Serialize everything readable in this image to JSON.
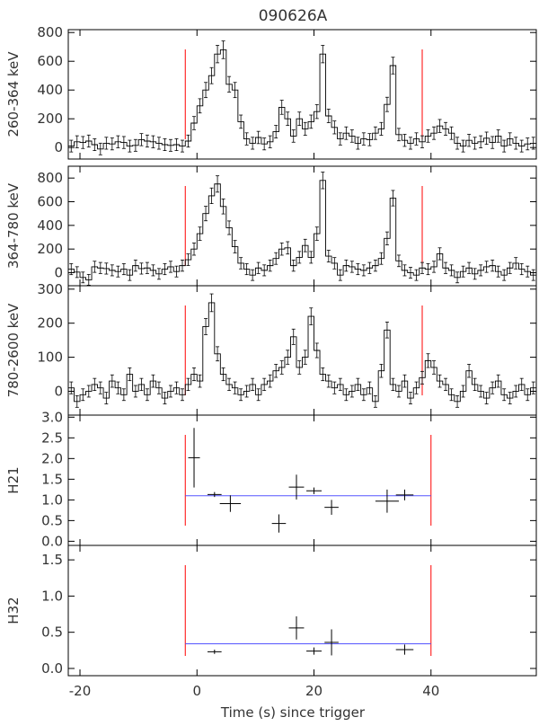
{
  "chart_data": {
    "type": "line",
    "title": "090626A",
    "xlabel": "Time (s) since trigger",
    "xlim": [
      -22,
      58
    ],
    "xticks": [
      -20,
      0,
      20,
      40
    ],
    "colors": {
      "data": "#000000",
      "marker": "#ff0000",
      "fit": "#5555ff",
      "frame": "#000000"
    },
    "panels": [
      {
        "ylabel": "260-364 keV",
        "ylim": [
          -80,
          820
        ],
        "yticks": [
          0,
          200,
          400,
          600,
          800
        ],
        "lightcurve": [
          [
            -22,
            10
          ],
          [
            -21,
            40
          ],
          [
            -20,
            35
          ],
          [
            -19,
            45
          ],
          [
            -18,
            20
          ],
          [
            -17,
            -10
          ],
          [
            -16,
            30
          ],
          [
            -15,
            25
          ],
          [
            -14,
            40
          ],
          [
            -13,
            35
          ],
          [
            -12,
            10
          ],
          [
            -11,
            15
          ],
          [
            -10,
            55
          ],
          [
            -9,
            45
          ],
          [
            -8,
            40
          ],
          [
            -7,
            30
          ],
          [
            -6,
            20
          ],
          [
            -5,
            15
          ],
          [
            -4,
            20
          ],
          [
            -3,
            10
          ],
          [
            -2,
            45
          ],
          [
            -1,
            170
          ],
          [
            0,
            290
          ],
          [
            1,
            400
          ],
          [
            2,
            500
          ],
          [
            3,
            650
          ],
          [
            4,
            680
          ],
          [
            5,
            440
          ],
          [
            6,
            400
          ],
          [
            7,
            180
          ],
          [
            8,
            60
          ],
          [
            9,
            30
          ],
          [
            10,
            70
          ],
          [
            11,
            25
          ],
          [
            12,
            40
          ],
          [
            13,
            110
          ],
          [
            14,
            280
          ],
          [
            15,
            200
          ],
          [
            16,
            80
          ],
          [
            17,
            200
          ],
          [
            18,
            130
          ],
          [
            19,
            180
          ],
          [
            20,
            250
          ],
          [
            21,
            650
          ],
          [
            22,
            220
          ],
          [
            23,
            140
          ],
          [
            24,
            60
          ],
          [
            25,
            100
          ],
          [
            26,
            80
          ],
          [
            27,
            30
          ],
          [
            28,
            60
          ],
          [
            29,
            55
          ],
          [
            30,
            100
          ],
          [
            31,
            130
          ],
          [
            32,
            300
          ],
          [
            33,
            570
          ],
          [
            34,
            90
          ],
          [
            35,
            50
          ],
          [
            36,
            30
          ],
          [
            37,
            60
          ],
          [
            38,
            40
          ],
          [
            39,
            80
          ],
          [
            40,
            100
          ],
          [
            41,
            150
          ],
          [
            42,
            130
          ],
          [
            43,
            100
          ],
          [
            44,
            30
          ],
          [
            45,
            10
          ],
          [
            46,
            50
          ],
          [
            47,
            30
          ],
          [
            48,
            40
          ],
          [
            49,
            65
          ],
          [
            50,
            35
          ],
          [
            51,
            80
          ],
          [
            52,
            10
          ],
          [
            53,
            60
          ],
          [
            54,
            30
          ],
          [
            55,
            10
          ],
          [
            56,
            25
          ],
          [
            57,
            30
          ]
        ],
        "markers": [
          -2,
          38.5
        ]
      },
      {
        "ylabel": "364-780 keV",
        "ylim": [
          -110,
          900
        ],
        "yticks": [
          0,
          200,
          400,
          600,
          800
        ],
        "lightcurve": [
          [
            -22,
            30
          ],
          [
            -21,
            5
          ],
          [
            -20,
            -40
          ],
          [
            -19,
            -60
          ],
          [
            -18,
            50
          ],
          [
            -17,
            40
          ],
          [
            -16,
            35
          ],
          [
            -15,
            20
          ],
          [
            -14,
            10
          ],
          [
            -13,
            30
          ],
          [
            -12,
            -20
          ],
          [
            -11,
            60
          ],
          [
            -10,
            35
          ],
          [
            -9,
            40
          ],
          [
            -8,
            20
          ],
          [
            -7,
            -10
          ],
          [
            -6,
            30
          ],
          [
            -5,
            50
          ],
          [
            -4,
            10
          ],
          [
            -3,
            60
          ],
          [
            -2,
            110
          ],
          [
            -1,
            200
          ],
          [
            0,
            330
          ],
          [
            1,
            500
          ],
          [
            2,
            650
          ],
          [
            3,
            750
          ],
          [
            4,
            560
          ],
          [
            5,
            380
          ],
          [
            6,
            220
          ],
          [
            7,
            80
          ],
          [
            8,
            30
          ],
          [
            9,
            -20
          ],
          [
            10,
            40
          ],
          [
            11,
            20
          ],
          [
            12,
            60
          ],
          [
            13,
            120
          ],
          [
            14,
            200
          ],
          [
            15,
            210
          ],
          [
            16,
            60
          ],
          [
            17,
            130
          ],
          [
            18,
            230
          ],
          [
            19,
            130
          ],
          [
            20,
            330
          ],
          [
            21,
            780
          ],
          [
            22,
            140
          ],
          [
            23,
            80
          ],
          [
            24,
            -20
          ],
          [
            25,
            60
          ],
          [
            26,
            50
          ],
          [
            27,
            30
          ],
          [
            28,
            20
          ],
          [
            29,
            40
          ],
          [
            30,
            60
          ],
          [
            31,
            120
          ],
          [
            32,
            290
          ],
          [
            33,
            630
          ],
          [
            34,
            100
          ],
          [
            35,
            20
          ],
          [
            36,
            0
          ],
          [
            37,
            -20
          ],
          [
            38,
            40
          ],
          [
            39,
            30
          ],
          [
            40,
            50
          ],
          [
            41,
            160
          ],
          [
            42,
            40
          ],
          [
            43,
            20
          ],
          [
            44,
            -40
          ],
          [
            45,
            10
          ],
          [
            46,
            40
          ],
          [
            47,
            -10
          ],
          [
            48,
            20
          ],
          [
            49,
            50
          ],
          [
            50,
            60
          ],
          [
            51,
            10
          ],
          [
            52,
            -20
          ],
          [
            53,
            40
          ],
          [
            54,
            80
          ],
          [
            55,
            30
          ],
          [
            56,
            10
          ],
          [
            57,
            -20
          ]
        ],
        "markers": [
          -2,
          38.5
        ]
      },
      {
        "ylabel": "780-2600 keV",
        "ylim": [
          -70,
          310
        ],
        "yticks": [
          0,
          100,
          200,
          300
        ],
        "lightcurve": [
          [
            -22,
            10
          ],
          [
            -21,
            -30
          ],
          [
            -20,
            -10
          ],
          [
            -19,
            0
          ],
          [
            -18,
            20
          ],
          [
            -17,
            10
          ],
          [
            -16,
            -20
          ],
          [
            -15,
            30
          ],
          [
            -14,
            10
          ],
          [
            -13,
            -10
          ],
          [
            -12,
            50
          ],
          [
            -11,
            0
          ],
          [
            -10,
            20
          ],
          [
            -9,
            -10
          ],
          [
            -8,
            30
          ],
          [
            -7,
            10
          ],
          [
            -6,
            -20
          ],
          [
            -5,
            0
          ],
          [
            -4,
            10
          ],
          [
            -3,
            -10
          ],
          [
            -2,
            20
          ],
          [
            -1,
            50
          ],
          [
            0,
            30
          ],
          [
            1,
            190
          ],
          [
            2,
            260
          ],
          [
            3,
            110
          ],
          [
            4,
            50
          ],
          [
            5,
            20
          ],
          [
            6,
            10
          ],
          [
            7,
            -10
          ],
          [
            8,
            0
          ],
          [
            9,
            20
          ],
          [
            10,
            -10
          ],
          [
            11,
            20
          ],
          [
            12,
            30
          ],
          [
            13,
            60
          ],
          [
            14,
            70
          ],
          [
            15,
            100
          ],
          [
            16,
            160
          ],
          [
            17,
            70
          ],
          [
            18,
            100
          ],
          [
            19,
            220
          ],
          [
            20,
            120
          ],
          [
            21,
            50
          ],
          [
            22,
            30
          ],
          [
            23,
            10
          ],
          [
            24,
            20
          ],
          [
            25,
            -10
          ],
          [
            26,
            0
          ],
          [
            27,
            20
          ],
          [
            28,
            -10
          ],
          [
            29,
            10
          ],
          [
            30,
            -30
          ],
          [
            31,
            60
          ],
          [
            32,
            180
          ],
          [
            33,
            20
          ],
          [
            34,
            0
          ],
          [
            35,
            30
          ],
          [
            36,
            -20
          ],
          [
            37,
            10
          ],
          [
            38,
            40
          ],
          [
            39,
            90
          ],
          [
            40,
            70
          ],
          [
            41,
            30
          ],
          [
            42,
            20
          ],
          [
            43,
            -10
          ],
          [
            44,
            -30
          ],
          [
            45,
            0
          ],
          [
            46,
            60
          ],
          [
            47,
            20
          ],
          [
            48,
            0
          ],
          [
            49,
            -20
          ],
          [
            50,
            10
          ],
          [
            51,
            30
          ],
          [
            52,
            -10
          ],
          [
            53,
            -20
          ],
          [
            54,
            0
          ],
          [
            55,
            20
          ],
          [
            56,
            -10
          ],
          [
            57,
            10
          ]
        ],
        "markers": [
          -2,
          38.5
        ]
      },
      {
        "ylabel": "H21",
        "ylim": [
          -0.1,
          3.05
        ],
        "yticks": [
          0.0,
          0.5,
          1.0,
          1.5,
          2.0,
          2.5,
          3.0
        ],
        "points": [
          {
            "x": -0.5,
            "xerr": 1.0,
            "y": 2.02,
            "yerr": 0.72
          },
          {
            "x": 3.0,
            "xerr": 1.2,
            "y": 1.13,
            "yerr": 0.06
          },
          {
            "x": 5.7,
            "xerr": 1.8,
            "y": 0.91,
            "yerr": 0.2
          },
          {
            "x": 14.0,
            "xerr": 1.2,
            "y": 0.43,
            "yerr": 0.22
          },
          {
            "x": 17.0,
            "xerr": 1.3,
            "y": 1.31,
            "yerr": 0.3
          },
          {
            "x": 20.0,
            "xerr": 1.3,
            "y": 1.22,
            "yerr": 0.08
          },
          {
            "x": 23.0,
            "xerr": 1.2,
            "y": 0.82,
            "yerr": 0.18
          },
          {
            "x": 32.5,
            "xerr": 2.0,
            "y": 0.97,
            "yerr": 0.28
          },
          {
            "x": 35.5,
            "xerr": 1.5,
            "y": 1.12,
            "yerr": 0.13
          }
        ],
        "fit": {
          "x": [
            -2,
            40
          ],
          "y": 1.1
        },
        "markers": [
          -2,
          40
        ]
      },
      {
        "ylabel": "H32",
        "ylim": [
          -0.1,
          1.7
        ],
        "yticks": [
          0.0,
          0.5,
          1.0,
          1.5
        ],
        "points": [
          {
            "x": 3.0,
            "xerr": 1.2,
            "y": 0.23,
            "yerr": 0.03
          },
          {
            "x": 17.0,
            "xerr": 1.3,
            "y": 0.56,
            "yerr": 0.16
          },
          {
            "x": 20.0,
            "xerr": 1.3,
            "y": 0.24,
            "yerr": 0.05
          },
          {
            "x": 23.0,
            "xerr": 1.2,
            "y": 0.36,
            "yerr": 0.18
          },
          {
            "x": 35.5,
            "xerr": 1.5,
            "y": 0.26,
            "yerr": 0.07
          }
        ],
        "fit": {
          "x": [
            -2,
            40
          ],
          "y": 0.34
        },
        "markers": [
          -2,
          40
        ]
      }
    ]
  }
}
